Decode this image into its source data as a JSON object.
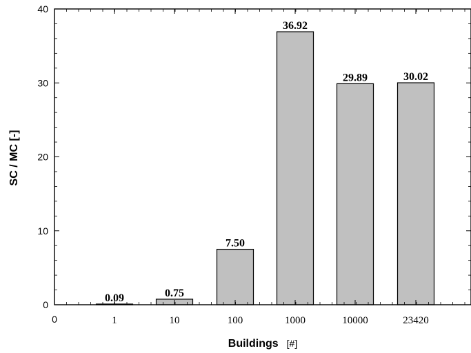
{
  "chart_data": {
    "type": "bar",
    "categories": [
      "1",
      "10",
      "100",
      "1000",
      "10000",
      "23420"
    ],
    "values": [
      0.09,
      0.75,
      7.5,
      36.92,
      29.89,
      30.02
    ],
    "data_labels": [
      "0.09",
      "0.75",
      "7.50",
      "36.92",
      "29.89",
      "30.02"
    ],
    "title": "",
    "xlabel": "Buildings",
    "xlabel_unit": "[#]",
    "ylabel": "SC / MC [-]",
    "ylim": [
      0,
      40
    ],
    "y_ticks": [
      0,
      10,
      20,
      30,
      40
    ],
    "x_origin_label": "0",
    "grid": false,
    "legend": "none",
    "bar_color": "#c0c0c0",
    "edge_color": "#000000"
  }
}
